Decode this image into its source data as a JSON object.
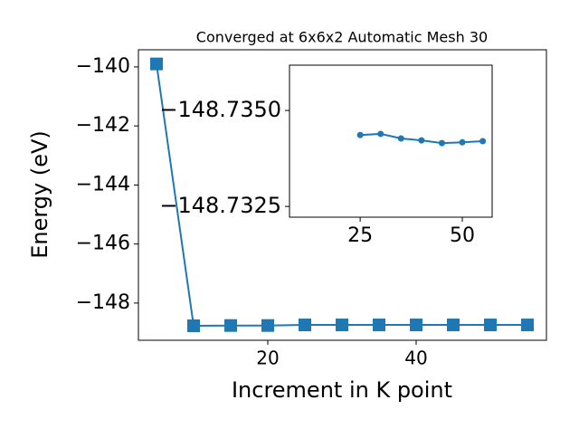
{
  "chart_data": [
    {
      "type": "line",
      "title": "Converged at 6x6x2 Automatic Mesh 30",
      "xlabel": "Increment in K point",
      "ylabel": "Energy (eV)",
      "x": [
        5,
        10,
        15,
        20,
        25,
        30,
        35,
        40,
        45,
        50,
        55
      ],
      "series": [
        {
          "color": "#1f77b4",
          "marker": "square",
          "values": [
            -139.9,
            -148.77,
            -148.76,
            -148.76,
            -148.74,
            -148.74,
            -148.74,
            -148.74,
            -148.74,
            -148.74,
            -148.74
          ]
        }
      ],
      "xlim": [
        2.56,
        57.56
      ],
      "ylim": [
        -149.26,
        -139.42
      ],
      "xticks": [
        20,
        40
      ],
      "yticks": [
        {
          "value": -140,
          "label": "−140"
        },
        {
          "value": -142,
          "label": "−142"
        },
        {
          "value": -144,
          "label": "−144"
        },
        {
          "value": -146,
          "label": "−146"
        },
        {
          "value": -148,
          "label": "−148"
        }
      ]
    },
    {
      "type": "line",
      "x": [
        25,
        30,
        35,
        40,
        45,
        50,
        55
      ],
      "series": [
        {
          "color": "#1f77b4",
          "marker": "circle",
          "values": [
            -148.73436,
            -148.73439,
            -148.73427,
            -148.73422,
            -148.73415,
            -148.73417,
            -148.7342
          ]
        }
      ],
      "xlim": [
        7.7,
        57.3
      ],
      "ylim": [
        -148.73222,
        -148.73618
      ],
      "xticks": [
        25,
        50
      ],
      "yticks": [
        {
          "value": -148.735,
          "label": "−148.7350"
        },
        {
          "value": -148.7325,
          "label": "−148.7325"
        }
      ]
    }
  ]
}
